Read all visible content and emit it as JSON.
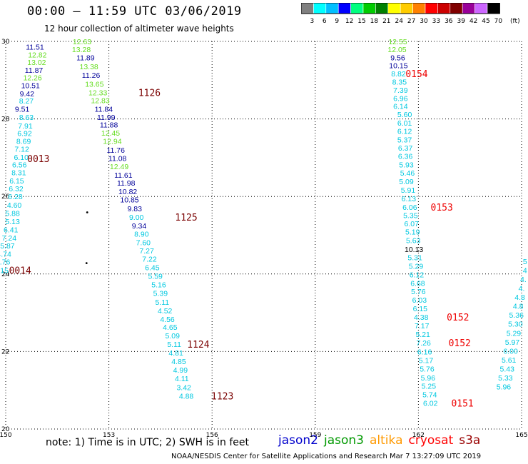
{
  "header": {
    "title": "00:00 – 11:59 UTC 03/06/2019",
    "subtitle": "12 hour collection of altimeter wave heights"
  },
  "scale": {
    "labels": [
      "3",
      "6",
      "9",
      "12",
      "15",
      "18",
      "21",
      "24",
      "27",
      "30",
      "33",
      "36",
      "39",
      "42",
      "45",
      "70",
      "(ft)"
    ],
    "colors": [
      "#808080",
      "#00ffff",
      "#00bfff",
      "#0000ff",
      "#00ff7f",
      "#00cc00",
      "#008000",
      "#ffff00",
      "#ffcc00",
      "#ff8000",
      "#ff0000",
      "#cc0000",
      "#800000",
      "#990099",
      "#cc66ff",
      "#000000"
    ]
  },
  "footer": {
    "note": "note: 1) Time is in UTC; 2) SWH is in feet",
    "legend": [
      {
        "name": "jason2",
        "color": "#0000cc"
      },
      {
        "name": "jason3",
        "color": "#009900"
      },
      {
        "name": "altika",
        "color": "#ff9900"
      },
      {
        "name": "cryosat",
        "color": "#ff0000"
      },
      {
        "name": "s3a",
        "color": "#990000"
      }
    ],
    "credit": "NOAA/NESDIS Center for Satellite Applications and Research   Mar  7 13:27:09 UTC 2019"
  },
  "chart_data": {
    "type": "scatter",
    "xlim": [
      150,
      165
    ],
    "ylim": [
      20,
      30
    ],
    "xticks": [
      150,
      153,
      156,
      159,
      162,
      165
    ],
    "yticks": [
      20,
      22,
      24,
      26,
      28,
      30
    ],
    "grid": true,
    "colors": {
      "cyan": "#00c8e0",
      "green": "#66dd22",
      "navy": "#000099",
      "maroon": "#7a0000",
      "red": "#ee0000",
      "black": "#000000"
    },
    "passes": [
      {
        "points": [
          {
            "x": 150.85,
            "y": 29.86,
            "v": "11.51",
            "c": "navy"
          },
          {
            "x": 150.92,
            "y": 29.66,
            "v": "12.82",
            "c": "green"
          },
          {
            "x": 150.9,
            "y": 29.47,
            "v": "13.02",
            "c": "green"
          },
          {
            "x": 150.82,
            "y": 29.26,
            "v": "11.87",
            "c": "navy"
          },
          {
            "x": 150.78,
            "y": 29.07,
            "v": "12.26",
            "c": "green"
          },
          {
            "x": 150.72,
            "y": 28.87,
            "v": "10.51",
            "c": "navy"
          },
          {
            "x": 150.62,
            "y": 28.66,
            "v": "9.42",
            "c": "navy"
          },
          {
            "x": 150.6,
            "y": 28.47,
            "v": "8.27",
            "c": "cyan"
          },
          {
            "x": 150.48,
            "y": 28.26,
            "v": "9.51",
            "c": "navy"
          },
          {
            "x": 150.6,
            "y": 28.05,
            "v": "8.63",
            "c": "cyan"
          },
          {
            "x": 150.57,
            "y": 27.83,
            "v": "7.91",
            "c": "cyan"
          },
          {
            "x": 150.55,
            "y": 27.63,
            "v": "6.92",
            "c": "cyan"
          },
          {
            "x": 150.52,
            "y": 27.43,
            "v": "8.69",
            "c": "cyan"
          },
          {
            "x": 150.47,
            "y": 27.23,
            "v": "7.12",
            "c": "cyan"
          },
          {
            "x": 150.45,
            "y": 27.02,
            "v": "6.10",
            "c": "cyan"
          },
          {
            "x": 150.4,
            "y": 26.82,
            "v": "6.56",
            "c": "cyan"
          },
          {
            "x": 150.38,
            "y": 26.62,
            "v": "8.31",
            "c": "cyan"
          },
          {
            "x": 150.32,
            "y": 26.41,
            "v": "6.15",
            "c": "cyan"
          },
          {
            "x": 150.3,
            "y": 26.21,
            "v": "6.32",
            "c": "cyan"
          },
          {
            "x": 150.28,
            "y": 26.0,
            "v": "6.28",
            "c": "cyan"
          },
          {
            "x": 150.25,
            "y": 25.78,
            "v": "4.60",
            "c": "cyan"
          },
          {
            "x": 150.2,
            "y": 25.57,
            "v": "5.88",
            "c": "cyan"
          },
          {
            "x": 150.2,
            "y": 25.36,
            "v": "5.13",
            "c": "cyan"
          },
          {
            "x": 150.15,
            "y": 25.15,
            "v": "6.41",
            "c": "cyan"
          },
          {
            "x": 150.1,
            "y": 24.94,
            "v": "7.24",
            "c": "cyan"
          },
          {
            "x": 150.05,
            "y": 24.73,
            "v": "5.87",
            "c": "cyan"
          },
          {
            "x": 149.95,
            "y": 24.52,
            "v": "4.74",
            "c": "cyan"
          },
          {
            "x": 149.92,
            "y": 24.32,
            "v": "4.76",
            "c": "cyan"
          },
          {
            "x": 149.87,
            "y": 24.1,
            "v": "5.15",
            "c": "cyan"
          }
        ],
        "labels": [
          {
            "x": 150.95,
            "y": 26.98,
            "t": "0013",
            "c": "maroon"
          },
          {
            "x": 150.42,
            "y": 24.1,
            "t": "0014",
            "c": "maroon"
          }
        ]
      },
      {
        "points": [
          {
            "x": 152.22,
            "y": 30.0,
            "v": "12.63",
            "c": "green"
          },
          {
            "x": 152.2,
            "y": 29.8,
            "v": "13.28",
            "c": "green"
          },
          {
            "x": 152.32,
            "y": 29.59,
            "v": "11.89",
            "c": "navy"
          },
          {
            "x": 152.42,
            "y": 29.36,
            "v": "13.38",
            "c": "green"
          },
          {
            "x": 152.48,
            "y": 29.13,
            "v": "11.26",
            "c": "navy"
          },
          {
            "x": 152.58,
            "y": 28.9,
            "v": "13.65",
            "c": "green"
          },
          {
            "x": 152.68,
            "y": 28.68,
            "v": "12.33",
            "c": "green"
          },
          {
            "x": 152.75,
            "y": 28.48,
            "v": "12.83",
            "c": "green"
          },
          {
            "x": 152.85,
            "y": 28.26,
            "v": "11.84",
            "c": "navy"
          },
          {
            "x": 152.92,
            "y": 28.05,
            "v": "11.99",
            "c": "navy"
          },
          {
            "x": 153.0,
            "y": 27.85,
            "v": "11.88",
            "c": "navy"
          },
          {
            "x": 153.05,
            "y": 27.64,
            "v": "12.45",
            "c": "green"
          },
          {
            "x": 153.1,
            "y": 27.43,
            "v": "12.94",
            "c": "green"
          },
          {
            "x": 153.2,
            "y": 27.2,
            "v": "11.76",
            "c": "navy"
          },
          {
            "x": 153.25,
            "y": 26.99,
            "v": "11.08",
            "c": "navy"
          },
          {
            "x": 153.3,
            "y": 26.78,
            "v": "12.49",
            "c": "green"
          },
          {
            "x": 153.42,
            "y": 26.56,
            "v": "11.61",
            "c": "navy"
          },
          {
            "x": 153.5,
            "y": 26.35,
            "v": "11.98",
            "c": "navy"
          },
          {
            "x": 153.55,
            "y": 26.13,
            "v": "10.82",
            "c": "navy"
          },
          {
            "x": 153.6,
            "y": 25.92,
            "v": "10.85",
            "c": "navy"
          },
          {
            "x": 153.75,
            "y": 25.69,
            "v": "9.83",
            "c": "navy"
          },
          {
            "x": 153.8,
            "y": 25.47,
            "v": "9.00",
            "c": "cyan"
          },
          {
            "x": 153.88,
            "y": 25.25,
            "v": "9.34",
            "c": "navy"
          },
          {
            "x": 153.95,
            "y": 25.04,
            "v": "8.90",
            "c": "cyan"
          },
          {
            "x": 154.0,
            "y": 24.82,
            "v": "7.60",
            "c": "cyan"
          },
          {
            "x": 154.1,
            "y": 24.6,
            "v": "7.27",
            "c": "cyan"
          },
          {
            "x": 154.18,
            "y": 24.39,
            "v": "7.22",
            "c": "cyan"
          },
          {
            "x": 154.26,
            "y": 24.17,
            "v": "6.45",
            "c": "cyan"
          },
          {
            "x": 154.35,
            "y": 23.95,
            "v": "5.59",
            "c": "cyan"
          },
          {
            "x": 154.45,
            "y": 23.73,
            "v": "5.16",
            "c": "cyan"
          },
          {
            "x": 154.5,
            "y": 23.51,
            "v": "5.39",
            "c": "cyan"
          },
          {
            "x": 154.55,
            "y": 23.28,
            "v": "5.11",
            "c": "cyan"
          },
          {
            "x": 154.63,
            "y": 23.06,
            "v": "4.52",
            "c": "cyan"
          },
          {
            "x": 154.7,
            "y": 22.84,
            "v": "4.56",
            "c": "cyan"
          },
          {
            "x": 154.78,
            "y": 22.63,
            "v": "4.65",
            "c": "cyan"
          },
          {
            "x": 154.85,
            "y": 22.41,
            "v": "5.09",
            "c": "cyan"
          },
          {
            "x": 154.9,
            "y": 22.19,
            "v": "5.11",
            "c": "cyan"
          },
          {
            "x": 154.95,
            "y": 21.97,
            "v": "4.81",
            "c": "cyan"
          },
          {
            "x": 155.03,
            "y": 21.75,
            "v": "4.85",
            "c": "cyan"
          },
          {
            "x": 155.08,
            "y": 21.53,
            "v": "4.99",
            "c": "cyan"
          },
          {
            "x": 155.12,
            "y": 21.31,
            "v": "4.11",
            "c": "cyan"
          },
          {
            "x": 155.18,
            "y": 21.08,
            "v": "3.42",
            "c": "cyan"
          },
          {
            "x": 155.25,
            "y": 20.86,
            "v": "4.88",
            "c": "cyan"
          }
        ],
        "labels": [
          {
            "x": 154.18,
            "y": 28.68,
            "t": "1126",
            "c": "maroon"
          },
          {
            "x": 155.25,
            "y": 25.47,
            "t": "1125",
            "c": "maroon"
          },
          {
            "x": 155.6,
            "y": 22.19,
            "t": "1124",
            "c": "maroon"
          },
          {
            "x": 156.3,
            "y": 20.86,
            "t": "1123",
            "c": "maroon"
          }
        ],
        "dots": [
          {
            "x": 152.37,
            "y": 25.59
          },
          {
            "x": 152.35,
            "y": 24.28
          }
        ]
      },
      {
        "points": [
          {
            "x": 161.4,
            "y": 30.0,
            "v": "12.55",
            "c": "green"
          },
          {
            "x": 161.38,
            "y": 29.8,
            "v": "12.05",
            "c": "green"
          },
          {
            "x": 161.4,
            "y": 29.59,
            "v": "9.56",
            "c": "navy"
          },
          {
            "x": 161.42,
            "y": 29.38,
            "v": "10.15",
            "c": "navy"
          },
          {
            "x": 161.42,
            "y": 29.17,
            "v": "8.82",
            "c": "cyan"
          },
          {
            "x": 161.45,
            "y": 28.96,
            "v": "8.35",
            "c": "cyan"
          },
          {
            "x": 161.48,
            "y": 28.75,
            "v": "7.39",
            "c": "cyan"
          },
          {
            "x": 161.48,
            "y": 28.54,
            "v": "6.96",
            "c": "cyan"
          },
          {
            "x": 161.48,
            "y": 28.33,
            "v": "6.14",
            "c": "cyan"
          },
          {
            "x": 161.6,
            "y": 28.12,
            "v": "5.60",
            "c": "cyan"
          },
          {
            "x": 161.6,
            "y": 27.9,
            "v": "6.01",
            "c": "cyan"
          },
          {
            "x": 161.6,
            "y": 27.69,
            "v": "6.12",
            "c": "cyan"
          },
          {
            "x": 161.6,
            "y": 27.47,
            "v": "5.37",
            "c": "cyan"
          },
          {
            "x": 161.62,
            "y": 27.26,
            "v": "6.37",
            "c": "cyan"
          },
          {
            "x": 161.62,
            "y": 27.04,
            "v": "6.36",
            "c": "cyan"
          },
          {
            "x": 161.65,
            "y": 26.82,
            "v": "5.93",
            "c": "cyan"
          },
          {
            "x": 161.68,
            "y": 26.61,
            "v": "5.46",
            "c": "cyan"
          },
          {
            "x": 161.65,
            "y": 26.39,
            "v": "5.09",
            "c": "cyan"
          },
          {
            "x": 161.7,
            "y": 26.17,
            "v": "5.91",
            "c": "cyan"
          },
          {
            "x": 161.72,
            "y": 25.95,
            "v": "6.13",
            "c": "cyan"
          },
          {
            "x": 161.75,
            "y": 25.73,
            "v": "6.06",
            "c": "cyan"
          },
          {
            "x": 161.77,
            "y": 25.52,
            "v": "5.35",
            "c": "cyan"
          },
          {
            "x": 161.8,
            "y": 25.3,
            "v": "6.07",
            "c": "cyan"
          },
          {
            "x": 161.83,
            "y": 25.09,
            "v": "5.19",
            "c": "cyan"
          },
          {
            "x": 161.85,
            "y": 24.87,
            "v": "5.63",
            "c": "cyan"
          },
          {
            "x": 161.87,
            "y": 24.64,
            "v": "10.13",
            "c": "black"
          },
          {
            "x": 161.9,
            "y": 24.43,
            "v": "5.31",
            "c": "cyan"
          },
          {
            "x": 161.93,
            "y": 24.21,
            "v": "5.29",
            "c": "cyan"
          },
          {
            "x": 161.95,
            "y": 23.99,
            "v": "6.12",
            "c": "cyan"
          },
          {
            "x": 161.98,
            "y": 23.77,
            "v": "6.68",
            "c": "cyan"
          },
          {
            "x": 162.0,
            "y": 23.55,
            "v": "5.76",
            "c": "cyan"
          },
          {
            "x": 162.03,
            "y": 23.33,
            "v": "6.03",
            "c": "cyan"
          },
          {
            "x": 162.05,
            "y": 23.11,
            "v": "6.15",
            "c": "cyan"
          },
          {
            "x": 162.08,
            "y": 22.89,
            "v": "4.38",
            "c": "cyan"
          },
          {
            "x": 162.1,
            "y": 22.67,
            "v": "7.17",
            "c": "cyan"
          },
          {
            "x": 162.13,
            "y": 22.45,
            "v": "5.21",
            "c": "cyan"
          },
          {
            "x": 162.15,
            "y": 22.23,
            "v": "7.26",
            "c": "cyan"
          },
          {
            "x": 162.18,
            "y": 22.0,
            "v": "6.16",
            "c": "cyan"
          },
          {
            "x": 162.22,
            "y": 21.78,
            "v": "5.17",
            "c": "cyan"
          },
          {
            "x": 162.25,
            "y": 21.56,
            "v": "5.76",
            "c": "cyan"
          },
          {
            "x": 162.28,
            "y": 21.33,
            "v": "5.96",
            "c": "cyan"
          },
          {
            "x": 162.3,
            "y": 21.11,
            "v": "5.25",
            "c": "cyan"
          },
          {
            "x": 162.33,
            "y": 20.89,
            "v": "5.74",
            "c": "cyan"
          },
          {
            "x": 162.35,
            "y": 20.67,
            "v": "6.02",
            "c": "cyan"
          }
        ],
        "labels": [
          {
            "x": 161.95,
            "y": 29.17,
            "t": "0154",
            "c": "red"
          },
          {
            "x": 162.68,
            "y": 25.73,
            "t": "0153",
            "c": "red"
          },
          {
            "x": 163.15,
            "y": 22.89,
            "t": "0152",
            "c": "red"
          },
          {
            "x": 163.2,
            "y": 22.23,
            "t": "0152",
            "c": "red"
          },
          {
            "x": 163.28,
            "y": 20.67,
            "t": "0151",
            "c": "red"
          }
        ]
      },
      {
        "points": [
          {
            "x": 165.1,
            "y": 24.33,
            "v": "5",
            "c": "cyan"
          },
          {
            "x": 165.1,
            "y": 24.1,
            "v": "4",
            "c": "cyan"
          },
          {
            "x": 165.05,
            "y": 23.87,
            "v": "4.",
            "c": "cyan"
          },
          {
            "x": 165.0,
            "y": 23.64,
            "v": "4.",
            "c": "cyan"
          },
          {
            "x": 164.95,
            "y": 23.41,
            "v": "4.8",
            "c": "cyan"
          },
          {
            "x": 164.9,
            "y": 23.18,
            "v": "4.8",
            "c": "cyan"
          },
          {
            "x": 164.85,
            "y": 22.95,
            "v": "5.36",
            "c": "cyan"
          },
          {
            "x": 164.82,
            "y": 22.72,
            "v": "5.30",
            "c": "cyan"
          },
          {
            "x": 164.77,
            "y": 22.48,
            "v": "5.29",
            "c": "cyan"
          },
          {
            "x": 164.73,
            "y": 22.25,
            "v": "5.97",
            "c": "cyan"
          },
          {
            "x": 164.68,
            "y": 22.02,
            "v": "6.00",
            "c": "cyan"
          },
          {
            "x": 164.63,
            "y": 21.79,
            "v": "5.61",
            "c": "cyan"
          },
          {
            "x": 164.58,
            "y": 21.56,
            "v": "5.43",
            "c": "cyan"
          },
          {
            "x": 164.53,
            "y": 21.33,
            "v": "5.33",
            "c": "cyan"
          },
          {
            "x": 164.48,
            "y": 21.1,
            "v": "5.96",
            "c": "cyan"
          }
        ],
        "labels": []
      }
    ]
  }
}
